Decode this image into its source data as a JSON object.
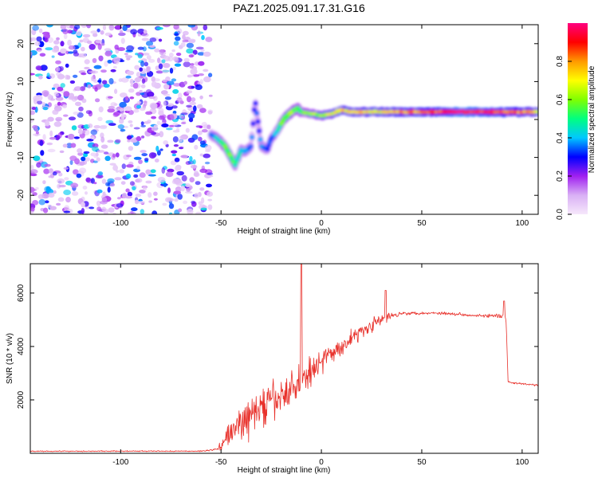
{
  "title": "PAZ1.2025.091.17.31.G16",
  "chart_data": [
    {
      "type": "heatmap",
      "xlabel": "Height of straight line (km)",
      "ylabel": "Frequency (Hz)",
      "xlim": [
        -145,
        108
      ],
      "ylim": [
        -25,
        25
      ],
      "xticks": [
        -100,
        -50,
        0,
        50,
        100
      ],
      "xtick_labels": [
        "-100",
        "-50",
        "0",
        "50",
        "100"
      ],
      "yticks": [
        -20,
        -10,
        0,
        10,
        20
      ],
      "ytick_labels": [
        "-20",
        "-10",
        "0",
        "10",
        "20"
      ],
      "colorbar": {
        "label": "Normalized spectral amplitude",
        "range": [
          0,
          1
        ],
        "ticks": [
          0.0,
          0.2,
          0.4,
          0.6,
          0.8
        ],
        "tick_labels": [
          "0.0",
          "0.2",
          "0.4",
          "0.6",
          "0.8"
        ],
        "stops": [
          "#f6e8fb",
          "#d9b0f5",
          "#a020f0",
          "#0000ff",
          "#00c8ff",
          "#00ff80",
          "#80ff00",
          "#ffff00",
          "#ff9900",
          "#ff0000",
          "#ff0080"
        ]
      },
      "noise_region_x": [
        -145,
        -55
      ],
      "noise_frequency_range": [
        -25,
        25
      ],
      "ridge": {
        "x": [
          -55,
          -52,
          -48,
          -45,
          -43,
          -40,
          -38,
          -35,
          -33,
          -30,
          -27,
          -25,
          -22,
          -20,
          -18,
          -15,
          -12,
          -10,
          -5,
          0,
          5,
          10,
          15,
          20,
          30,
          40,
          50,
          60,
          70,
          80,
          90,
          100,
          108
        ],
        "freq": [
          -4,
          -5,
          -7,
          -10,
          -12,
          -8,
          -8.5,
          -7,
          5,
          -7,
          -8,
          -5,
          -3,
          -1,
          0.5,
          2,
          3,
          2,
          1.5,
          1,
          1.5,
          2.5,
          2,
          2,
          2,
          2,
          2,
          2,
          2,
          2,
          2,
          2,
          2
        ],
        "amplitude": [
          0.35,
          0.45,
          0.55,
          0.6,
          0.5,
          0.45,
          0.4,
          0.35,
          0.3,
          0.4,
          0.35,
          0.35,
          0.4,
          0.55,
          0.6,
          0.6,
          0.55,
          0.55,
          0.6,
          0.65,
          0.7,
          0.75,
          0.75,
          0.75,
          0.75,
          0.8,
          0.85,
          0.9,
          1.0,
          0.95,
          0.9,
          0.8,
          0.75
        ]
      }
    },
    {
      "type": "line",
      "xlabel": "Height of straight line (km)",
      "ylabel": "SNR (10 * v/v)",
      "xlim": [
        -145,
        108
      ],
      "ylim": [
        0,
        7100
      ],
      "xticks": [
        -100,
        -50,
        0,
        50,
        100
      ],
      "xtick_labels": [
        "-100",
        "-50",
        "0",
        "50",
        "100"
      ],
      "yticks": [
        2000,
        4000,
        6000
      ],
      "ytick_labels": [
        "2000",
        "4000",
        "6000"
      ],
      "series": [
        {
          "color": "#e8302a",
          "envelope": {
            "x": [
              -145,
              -60,
              -52,
              -48,
              -45,
              -40,
              -35,
              -30,
              -25,
              -20,
              -15,
              -12,
              -10,
              -8,
              -5,
              0,
              5,
              10,
              15,
              20,
              25,
              30,
              33,
              35,
              40,
              50,
              60,
              70,
              80,
              85,
              90,
              92,
              93,
              94,
              100,
              108
            ],
            "mean": [
              80,
              80,
              150,
              500,
              800,
              1100,
              1400,
              1700,
              1900,
              2100,
              2400,
              2600,
              2600,
              2900,
              3100,
              3500,
              3700,
              4000,
              4300,
              4600,
              4800,
              5000,
              5100,
              5150,
              5250,
              5250,
              5250,
              5200,
              5150,
              5150,
              5100,
              5000,
              2700,
              2650,
              2600,
              2550
            ],
            "spread": [
              30,
              30,
              60,
              500,
              700,
              900,
              1000,
              1100,
              1100,
              1100,
              1000,
              900,
              900,
              800,
              700,
              600,
              550,
              500,
              450,
              400,
              350,
              300,
              300,
              150,
              100,
              80,
              80,
              80,
              80,
              100,
              150,
              150,
              60,
              60,
              60,
              60
            ]
          },
          "peaks": [
            [
              -10,
              7100
            ],
            [
              32,
              6100
            ],
            [
              91,
              5700
            ]
          ]
        }
      ]
    }
  ]
}
